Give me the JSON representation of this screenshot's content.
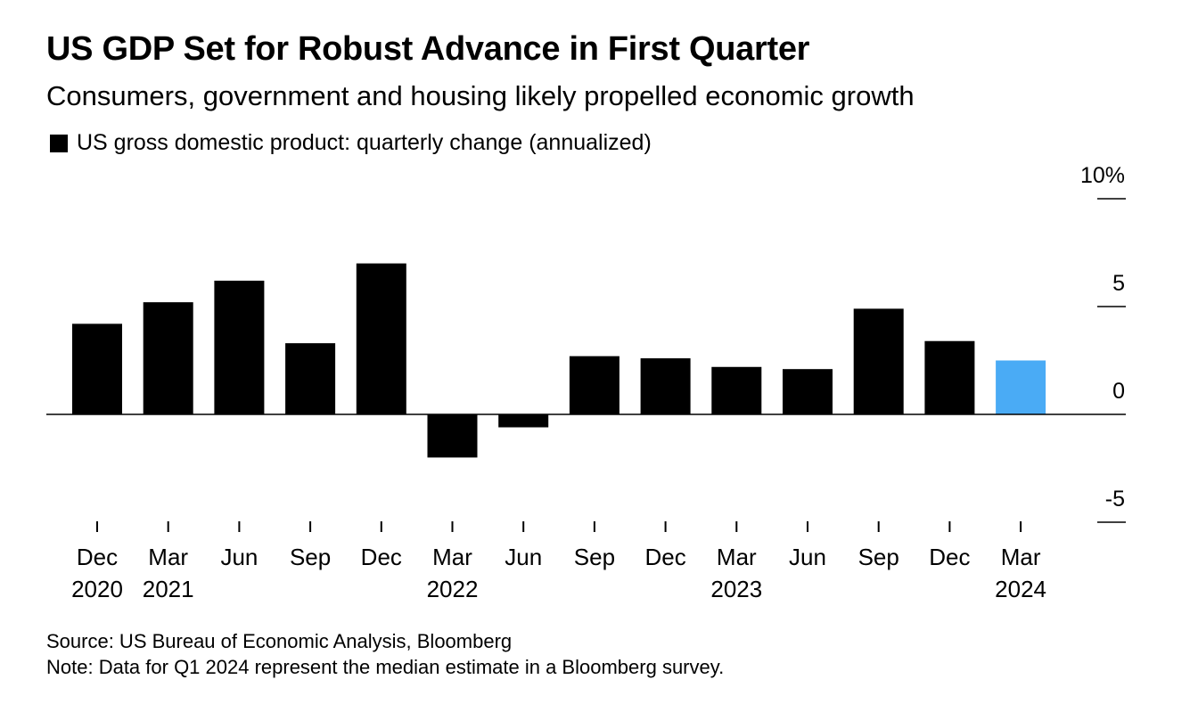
{
  "title": "US GDP Set for Robust Advance in First Quarter",
  "subtitle": "Consumers, government and housing likely propelled economic growth",
  "source": "Source: US Bureau of Economic Analysis, Bloomberg",
  "note": "Note: Data for Q1 2024 represent the median estimate in a Bloomberg survey.",
  "chart_data": {
    "type": "bar",
    "categories": [
      "Dec 2020",
      "Mar 2021",
      "Jun 2021",
      "Sep 2021",
      "Dec 2021",
      "Mar 2022",
      "Jun 2022",
      "Sep 2022",
      "Dec 2022",
      "Mar 2023",
      "Jun 2023",
      "Sep 2023",
      "Dec 2023",
      "Mar 2024"
    ],
    "tick_labels": [
      {
        "month": "Dec",
        "year": "2020"
      },
      {
        "month": "Mar",
        "year": "2021"
      },
      {
        "month": "Jun",
        "year": ""
      },
      {
        "month": "Sep",
        "year": ""
      },
      {
        "month": "Dec",
        "year": ""
      },
      {
        "month": "Mar",
        "year": "2022"
      },
      {
        "month": "Jun",
        "year": ""
      },
      {
        "month": "Sep",
        "year": ""
      },
      {
        "month": "Dec",
        "year": ""
      },
      {
        "month": "Mar",
        "year": "2023"
      },
      {
        "month": "Jun",
        "year": ""
      },
      {
        "month": "Sep",
        "year": ""
      },
      {
        "month": "Dec",
        "year": ""
      },
      {
        "month": "Mar",
        "year": "2024"
      }
    ],
    "series": [
      {
        "name": "US gross domestic product: quarterly change (annualized)",
        "values": [
          4.2,
          5.2,
          6.2,
          3.3,
          7.0,
          -2.0,
          -0.6,
          2.7,
          2.6,
          2.2,
          2.1,
          4.9,
          3.4,
          2.5
        ]
      }
    ],
    "bar_color": "#000000",
    "highlight_index": 13,
    "highlight_color": "#4aabf5",
    "ylim": [
      -5,
      10
    ],
    "yticks": [
      10,
      5,
      0,
      -5
    ],
    "ytick_labels": [
      "10%",
      "5",
      "0",
      "-5"
    ],
    "y_axis_position": "right",
    "grid": false,
    "legend": "top-left",
    "xlabel": "",
    "ylabel": ""
  }
}
